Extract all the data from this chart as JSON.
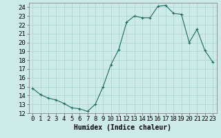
{
  "x": [
    0,
    1,
    2,
    3,
    4,
    5,
    6,
    7,
    8,
    9,
    10,
    11,
    12,
    13,
    14,
    15,
    16,
    17,
    18,
    19,
    20,
    21,
    22,
    23
  ],
  "y": [
    14.8,
    14.1,
    13.7,
    13.5,
    13.1,
    12.6,
    12.5,
    12.2,
    13.0,
    15.0,
    17.5,
    19.2,
    22.3,
    23.0,
    22.8,
    22.8,
    24.1,
    24.2,
    23.3,
    23.2,
    20.0,
    21.5,
    19.1,
    17.8
  ],
  "line_color": "#1a6b5e",
  "marker": "+",
  "marker_size": 3,
  "marker_lw": 0.8,
  "bg_color": "#cceae7",
  "grid_color": "#aad4d0",
  "xlabel": "Humidex (Indice chaleur)",
  "xlim": [
    -0.5,
    23.5
  ],
  "ylim": [
    12,
    24.5
  ],
  "yticks": [
    12,
    13,
    14,
    15,
    16,
    17,
    18,
    19,
    20,
    21,
    22,
    23,
    24
  ],
  "xticks": [
    0,
    1,
    2,
    3,
    4,
    5,
    6,
    7,
    8,
    9,
    10,
    11,
    12,
    13,
    14,
    15,
    16,
    17,
    18,
    19,
    20,
    21,
    22,
    23
  ],
  "xlabel_fontsize": 7,
  "tick_fontsize": 6.5,
  "line_width": 0.8
}
